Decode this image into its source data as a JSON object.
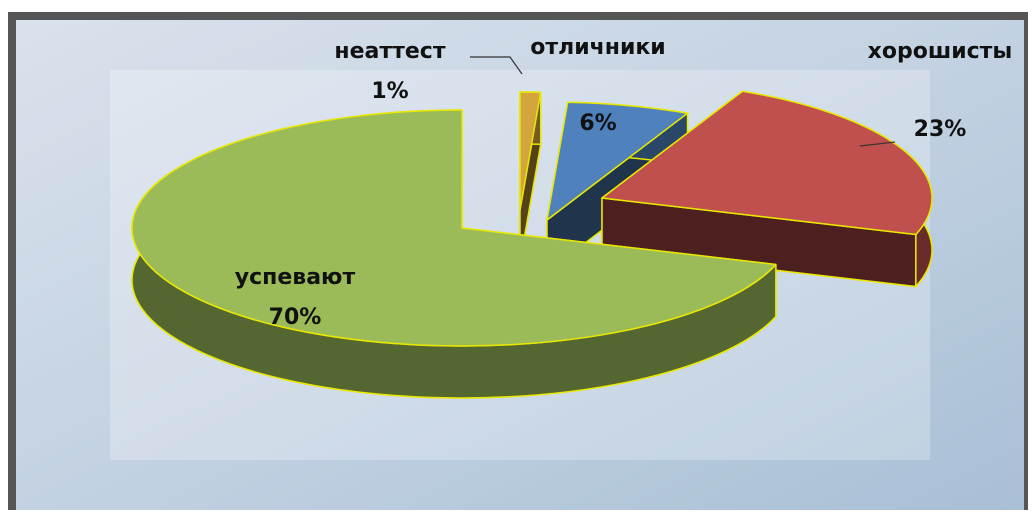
{
  "chart_data": {
    "type": "pie",
    "categories": [
      "неаттест",
      "отличники",
      "хорошисты",
      "успевают"
    ],
    "values": [
      1,
      6,
      23,
      70
    ],
    "value_labels": [
      "1%",
      "6%",
      "23%",
      "70%"
    ],
    "colors": [
      "#d4a53c",
      "#4f81bd",
      "#c0504d",
      "#9bbb59"
    ]
  }
}
